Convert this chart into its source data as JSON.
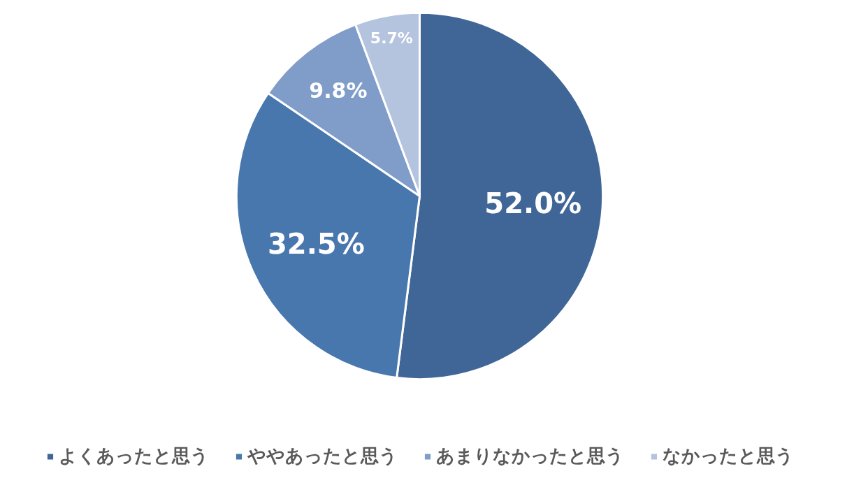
{
  "chart_data": {
    "type": "pie",
    "categories": [
      "よくあったと思う",
      "ややあったと思う",
      "あまりなかったと思う",
      "なかったと思う"
    ],
    "values": [
      52.0,
      32.5,
      9.8,
      5.7
    ],
    "colors": [
      "#3f6696",
      "#4877ae",
      "#7f9dc8",
      "#b4c3de"
    ],
    "value_labels": [
      "52.0%",
      "32.5%",
      "9.8%",
      "5.7%"
    ],
    "legend": "bottom"
  }
}
